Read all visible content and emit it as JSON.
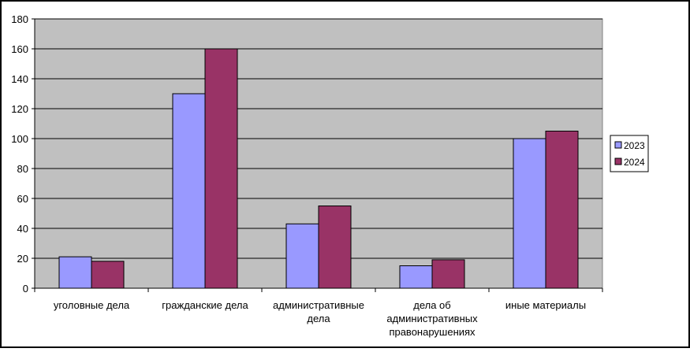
{
  "chart_data": {
    "type": "bar",
    "title": "",
    "xlabel": "",
    "ylabel": "",
    "categories": [
      [
        "уголовные дела"
      ],
      [
        "гражданские дела"
      ],
      [
        "административные",
        "дела"
      ],
      [
        "дела об",
        "административных",
        "правонарушениях"
      ],
      [
        "иные материалы"
      ]
    ],
    "series": [
      {
        "name": "2023",
        "values": [
          21,
          130,
          43,
          15,
          100
        ],
        "color": "#9999ff"
      },
      {
        "name": "2024",
        "values": [
          18,
          160,
          55,
          19,
          105
        ],
        "color": "#993366"
      }
    ],
    "ylim": [
      0,
      180
    ],
    "yticks": [
      0,
      20,
      40,
      60,
      80,
      100,
      120,
      140,
      160,
      180
    ],
    "grid": true,
    "plot_background": "#c0c0c0",
    "legend_position": "right"
  }
}
